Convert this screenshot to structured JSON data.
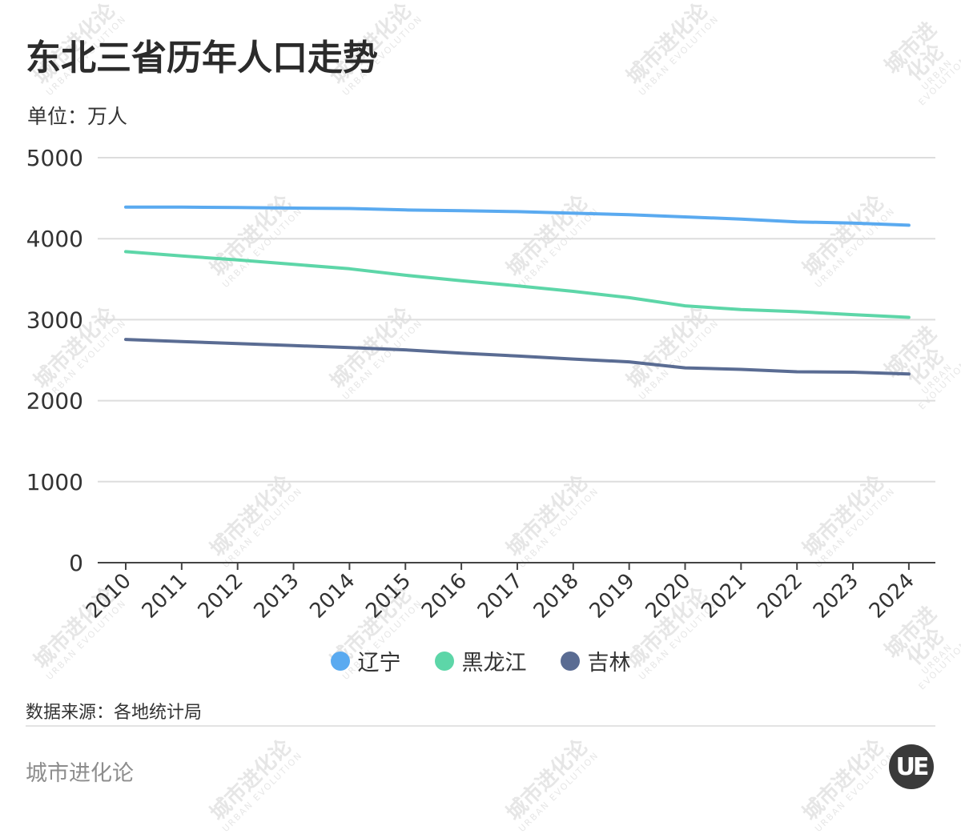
{
  "header": {
    "title": "东北三省历年人口走势",
    "unit": "单位：万人"
  },
  "footer": {
    "source": "数据来源：各地统计局",
    "brand": "城市进化论",
    "logo_text": "UE"
  },
  "watermark": {
    "cn": "城市进化论",
    "en": "URBAN EVOLUTION"
  },
  "colors": {
    "liaoning": "#5aaaf0",
    "heilongjiang": "#5dd6a8",
    "jilin": "#5a6c93",
    "grid": "#dddddd",
    "axis": "#444444"
  },
  "chart_data": {
    "type": "line",
    "title": "东北三省历年人口走势",
    "ylabel": "单位：万人",
    "ylim": [
      0,
      5000
    ],
    "yticks": [
      0,
      1000,
      2000,
      3000,
      4000,
      5000
    ],
    "grid": true,
    "legend_position": "bottom-center",
    "x": [
      "2010",
      "2011",
      "2012",
      "2013",
      "2014",
      "2015",
      "2016",
      "2017",
      "2018",
      "2019",
      "2020",
      "2021",
      "2022",
      "2023",
      "2024"
    ],
    "series": [
      {
        "name": "辽宁",
        "color": "#5aaaf0",
        "values": [
          4390,
          4389,
          4384,
          4377,
          4373,
          4355,
          4345,
          4334,
          4314,
          4296,
          4269,
          4242,
          4208,
          4192,
          4166
        ]
      },
      {
        "name": "黑龙江",
        "color": "#5dd6a8",
        "values": [
          3840,
          3787,
          3738,
          3683,
          3628,
          3548,
          3481,
          3418,
          3350,
          3272,
          3171,
          3125,
          3099,
          3062,
          3029
        ]
      },
      {
        "name": "吉林",
        "color": "#5a6c93",
        "values": [
          2756,
          2730,
          2705,
          2680,
          2656,
          2627,
          2586,
          2551,
          2514,
          2479,
          2405,
          2386,
          2357,
          2352,
          2329
        ]
      }
    ]
  }
}
